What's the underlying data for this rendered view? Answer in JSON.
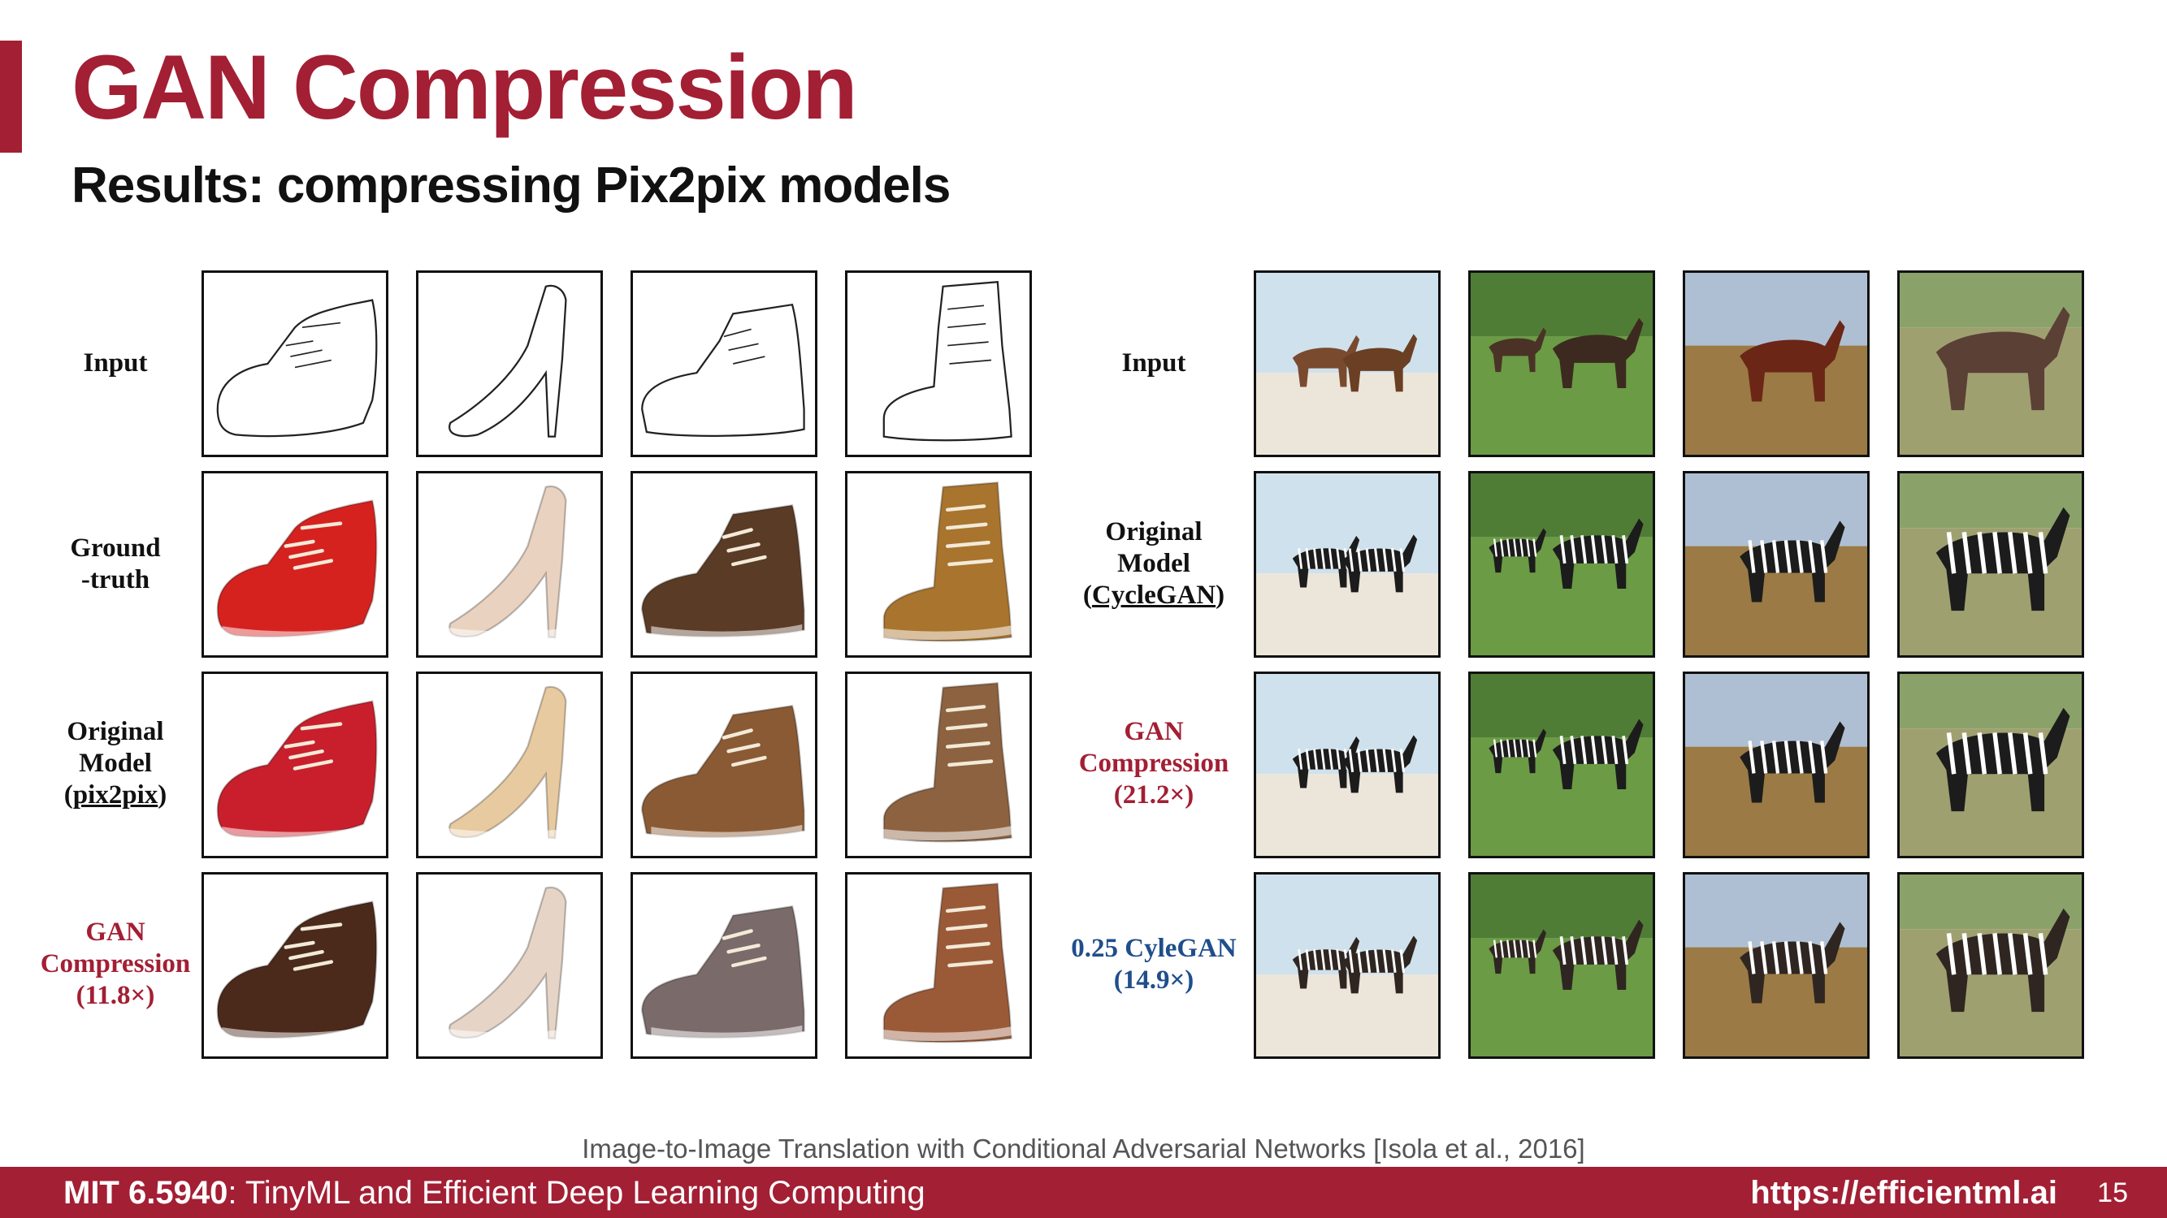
{
  "slide": {
    "title": "GAN Compression",
    "subtitle": "Results: compressing Pix2pix models",
    "citation": "Image-to-Image Translation with Conditional Adversarial Networks [Isola et al., 2016]"
  },
  "left_panel": {
    "rows": [
      {
        "line1": "Input"
      },
      {
        "line1": "Ground",
        "line2": "-truth"
      },
      {
        "line1": "Original",
        "line2": "Model",
        "line3_pre": "(",
        "line3_link": "pix2pix",
        "line3_post": ")"
      },
      {
        "line1": "GAN",
        "line2": "Compression",
        "line3": "(11.8×)"
      }
    ],
    "image_types": [
      "sneaker",
      "high-heel",
      "ankle-boot",
      "lace-up-boot"
    ]
  },
  "right_panel": {
    "rows": [
      {
        "line1": "Input"
      },
      {
        "line1": "Original",
        "line2": "Model",
        "line3_pre": "(",
        "line3_link": "CycleGAN",
        "line3_post": ")"
      },
      {
        "line1": "GAN",
        "line2": "Compression",
        "line3": "(21.2×)"
      },
      {
        "line1": "0.25 CyleGAN",
        "line2": "(14.9×)"
      }
    ],
    "image_types": [
      "horses-on-beach",
      "horses-in-grass",
      "horse-on-plain",
      "horse-in-field"
    ]
  },
  "colors": {
    "accent": "#a31f34",
    "blue_label": "#1f4e8c"
  },
  "footer": {
    "course_code": "MIT 6.5940",
    "course_name": ": TinyML and Efficient Deep Learning Computing",
    "url": "https://efficientml.ai",
    "page_number": "15"
  }
}
